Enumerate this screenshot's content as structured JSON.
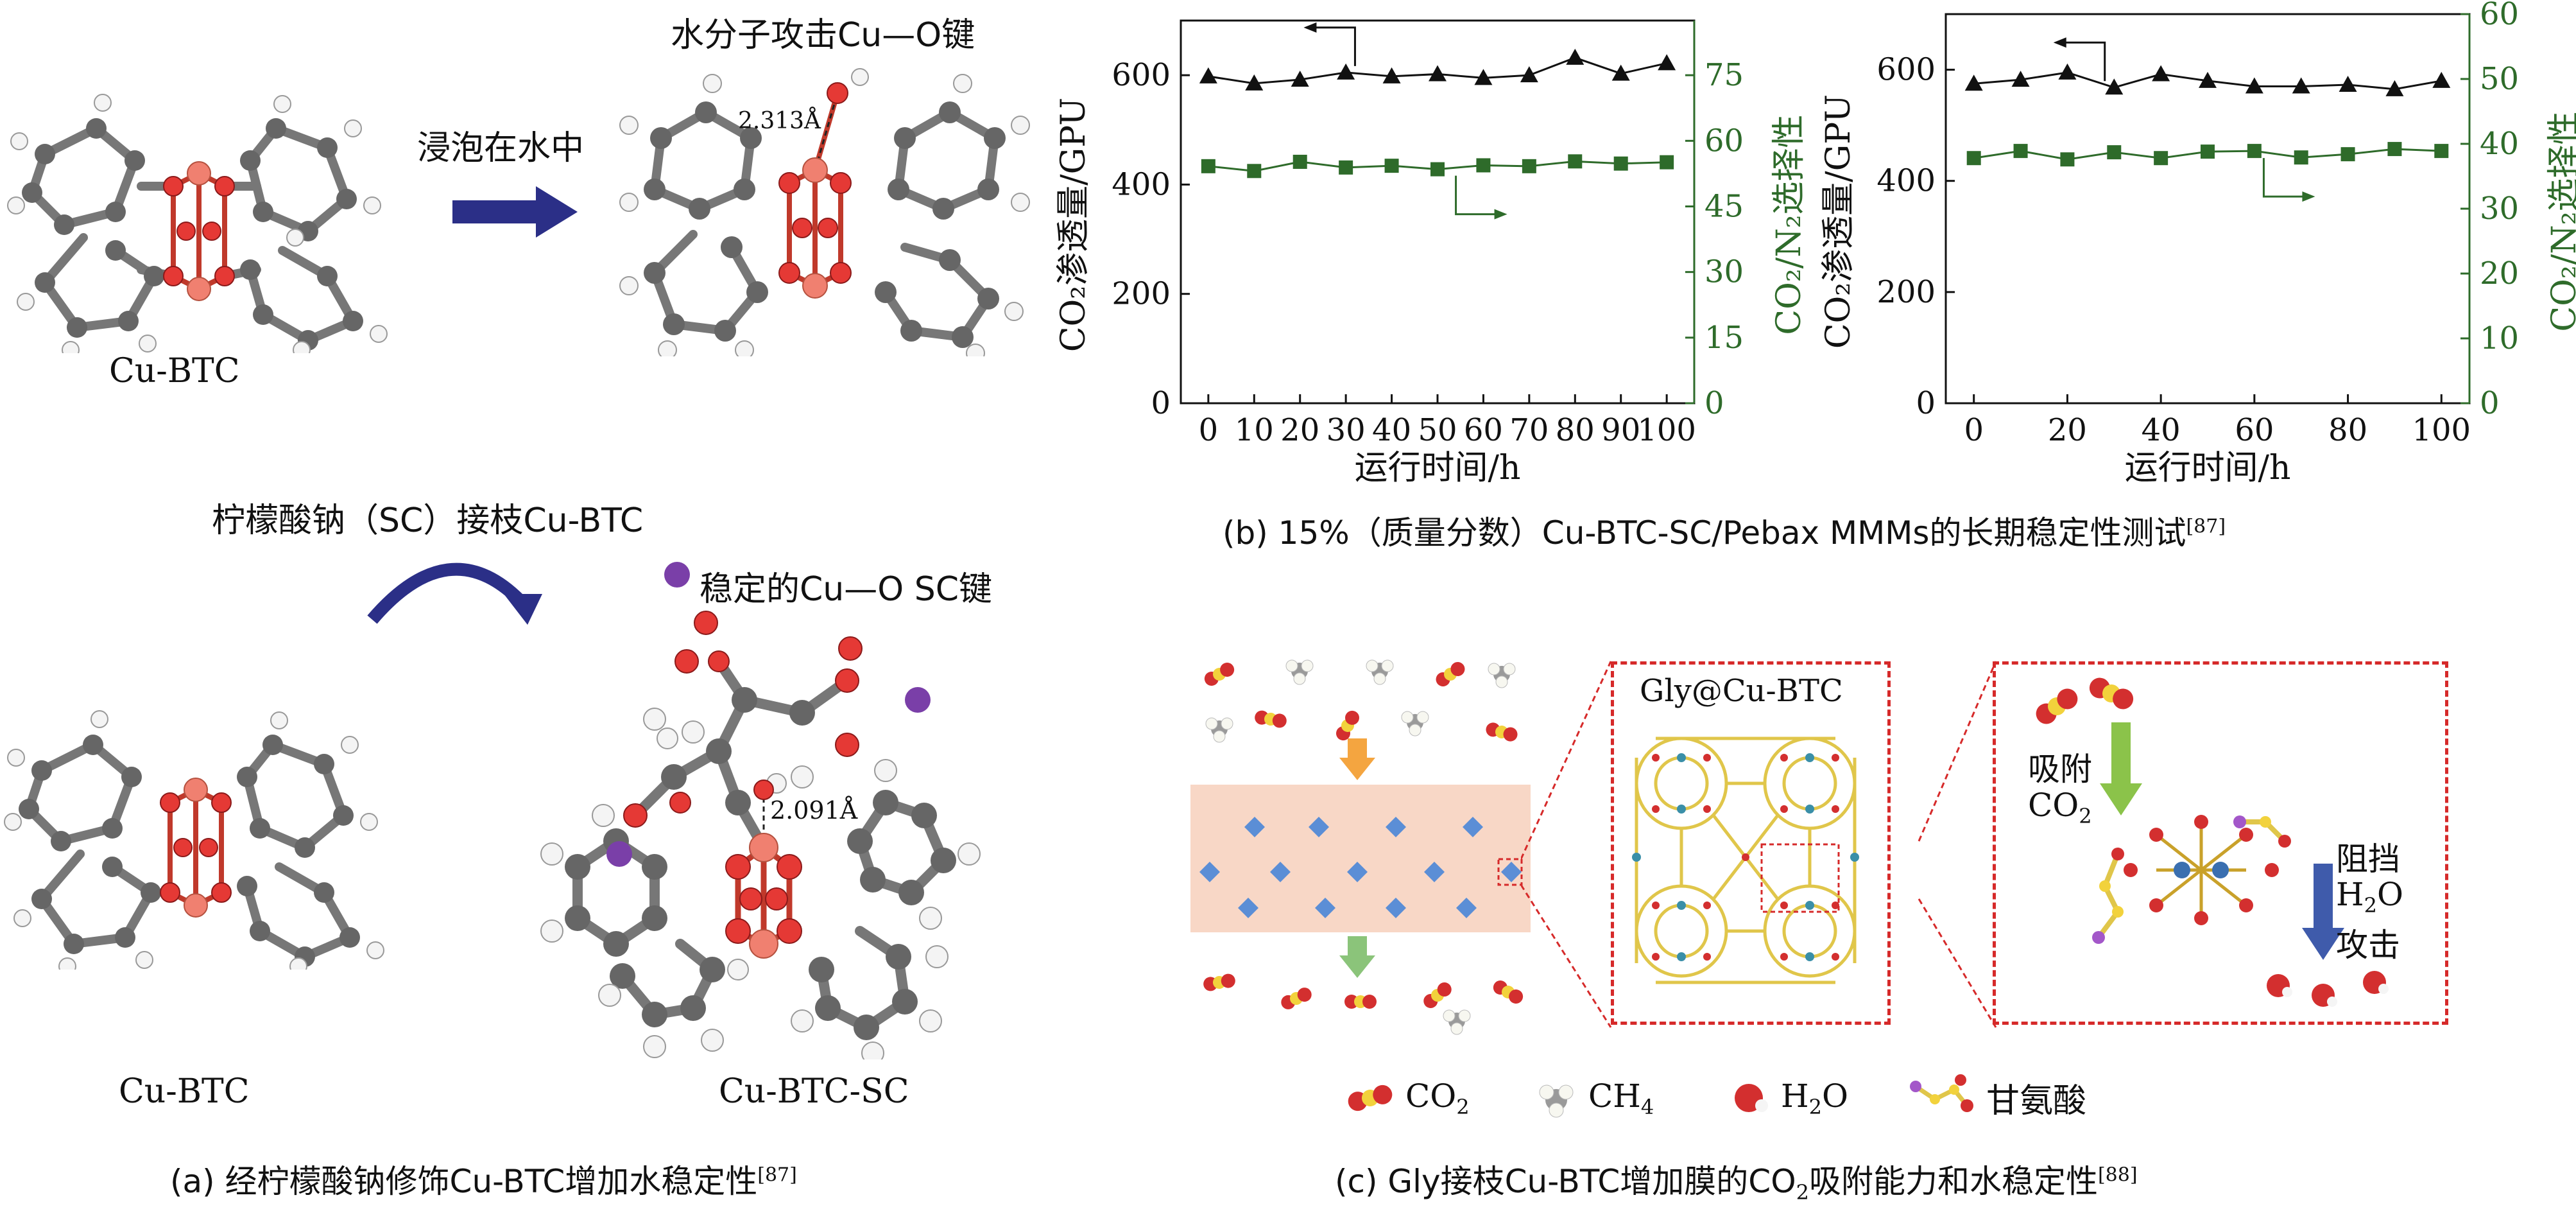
{
  "panel_a": {
    "label_top_left": "Cu-BTC",
    "arrow_text": "浸泡在水中",
    "title_top_right": "水分子攻击Cu—O键",
    "bond_top": "2.313Å",
    "graft_text": "柠檬酸钠（SC）接枝Cu-BTC",
    "legend_text": "稳定的Cu—O SC键",
    "bond_bottom": "2.091Å",
    "label_bottom_left": "Cu-BTC",
    "label_bottom_right": "Cu-BTC-SC",
    "caption_prefix": "(a) 经柠檬酸钠修饰Cu-BTC增加水稳定性",
    "caption_ref": "[87]"
  },
  "panel_b": {
    "caption_prefix": "(b) 15%（质量分数）Cu-BTC-SC/Pebax MMMs的长期稳定性测试",
    "caption_ref": "[87]"
  },
  "panel_c": {
    "box_title": "Gly@Cu-BTC",
    "adsorb_label": "吸附",
    "adsorb_gas": "CO",
    "adsorb_sub": "2",
    "block_label": "阻挡",
    "block_h": "H",
    "block_sub": "2",
    "block_o": "O",
    "block_attack": "攻击",
    "legend": {
      "co2": "CO",
      "co2_sub": "2",
      "ch4": "CH",
      "ch4_sub": "4",
      "h2o_h": "H",
      "h2o_sub": "2",
      "h2o_o": "O",
      "gly": "甘氨酸"
    },
    "caption_a": "(c) Gly接枝Cu-BTC增加膜的CO",
    "caption_sub": "2",
    "caption_b": "吸附能力和水稳定性",
    "caption_ref": "[88]"
  },
  "chart_data": [
    {
      "type": "line",
      "xlabel": "运行时间/h",
      "ylabel_left": "CO₂渗透量/GPU",
      "ylabel_right": "CO₂/N₂选择性",
      "x_ticks": [
        "0",
        "10",
        "20",
        "30",
        "40",
        "50",
        "60",
        "70",
        "80",
        "90",
        "100"
      ],
      "y_left_ticks": [
        "0",
        "200",
        "400",
        "600"
      ],
      "y_right_ticks": [
        "0",
        "15",
        "30",
        "45",
        "60",
        "75"
      ],
      "ylim_left": [
        0,
        700
      ],
      "ylim_right": [
        0,
        87.5
      ],
      "xlim": [
        -6,
        106
      ],
      "series": [
        {
          "axis": "left",
          "marker": "triangle",
          "color": "#111111",
          "x": [
            0,
            10,
            20,
            30,
            40,
            50,
            60,
            70,
            80,
            90,
            100
          ],
          "values": [
            598,
            585,
            592,
            605,
            598,
            602,
            595,
            600,
            632,
            603,
            622
          ]
        },
        {
          "axis": "right",
          "marker": "square",
          "color": "#2e6b2a",
          "x": [
            0,
            10,
            20,
            30,
            40,
            50,
            60,
            70,
            80,
            90,
            100
          ],
          "values": [
            54.2,
            53.1,
            55.2,
            53.9,
            54.3,
            53.5,
            54.4,
            54.2,
            55.3,
            54.8,
            55.1
          ]
        }
      ]
    },
    {
      "type": "line",
      "xlabel": "运行时间/h",
      "ylabel_left": "CO₂渗透量/GPU",
      "ylabel_right": "CO₂/N₂选择性",
      "x_ticks": [
        "0",
        "20",
        "40",
        "60",
        "80",
        "100"
      ],
      "y_left_ticks": [
        "0",
        "200",
        "400",
        "600"
      ],
      "y_right_ticks": [
        "0",
        "10",
        "20",
        "30",
        "40",
        "50",
        "60"
      ],
      "ylim_left": [
        0,
        700
      ],
      "ylim_right": [
        0,
        60
      ],
      "xlim": [
        -6,
        106
      ],
      "series": [
        {
          "axis": "left",
          "marker": "triangle",
          "color": "#111111",
          "x": [
            0,
            10,
            20,
            30,
            40,
            50,
            60,
            70,
            80,
            90,
            100
          ],
          "values": [
            575,
            582,
            595,
            568,
            592,
            580,
            570,
            570,
            573,
            565,
            580
          ]
        },
        {
          "axis": "right",
          "marker": "square",
          "color": "#2e6b2a",
          "x": [
            0,
            10,
            20,
            30,
            40,
            50,
            60,
            70,
            80,
            90,
            100
          ],
          "values": [
            37.8,
            38.9,
            37.6,
            38.7,
            37.8,
            38.8,
            38.9,
            37.9,
            38.4,
            39.2,
            38.9
          ]
        }
      ]
    }
  ]
}
